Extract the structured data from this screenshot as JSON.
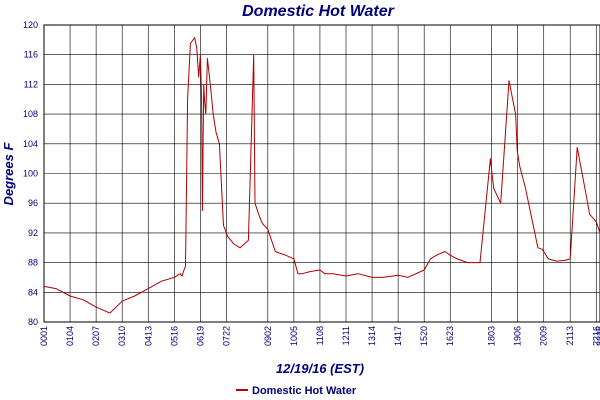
{
  "chart_data": {
    "type": "line",
    "title": "Domestic Hot Water",
    "xlabel": "12/19/16 (EST)",
    "ylabel": "Degrees F",
    "ylim": [
      80,
      120
    ],
    "yticks": [
      80,
      84,
      88,
      92,
      96,
      100,
      104,
      108,
      112,
      116,
      120
    ],
    "xlim": [
      "00:01",
      "22:25"
    ],
    "xticks": [
      "00:01",
      "01:04",
      "02:07",
      "03:10",
      "04:13",
      "05:16",
      "06:19",
      "07:22",
      "09:02",
      "10:05",
      "11:08",
      "12:11",
      "13:14",
      "14:17",
      "15:20",
      "16:23",
      "18:03",
      "19:06",
      "20:09",
      "21:13",
      "22:16",
      "22:25"
    ],
    "grid": true,
    "legend": "bottom-left",
    "colors": {
      "series": "#b00000",
      "axis": "#00007a",
      "grid": "#000000"
    },
    "series": [
      {
        "name": "Domestic Hot Water",
        "x": [
          "00:01",
          "00:30",
          "01:04",
          "01:35",
          "02:07",
          "02:40",
          "03:10",
          "03:40",
          "04:13",
          "04:45",
          "05:16",
          "05:30",
          "05:35",
          "05:38",
          "05:43",
          "05:48",
          "05:55",
          "06:05",
          "06:10",
          "06:15",
          "06:19",
          "06:22",
          "06:24",
          "06:27",
          "06:29",
          "06:32",
          "06:36",
          "06:43",
          "06:50",
          "06:57",
          "07:05",
          "07:15",
          "07:22",
          "07:25",
          "07:40",
          "07:55",
          "08:15",
          "08:28",
          "08:31",
          "08:40",
          "08:47",
          "08:50",
          "09:02",
          "09:20",
          "09:45",
          "10:05",
          "10:15",
          "10:25",
          "10:45",
          "11:08",
          "11:20",
          "11:40",
          "12:11",
          "12:40",
          "13:14",
          "13:40",
          "14:17",
          "14:40",
          "15:20",
          "15:35",
          "15:50",
          "16:10",
          "16:23",
          "16:40",
          "17:05",
          "17:35",
          "18:00",
          "18:03",
          "18:08",
          "18:25",
          "18:45",
          "19:01",
          "19:05",
          "19:11",
          "19:25",
          "19:40",
          "19:55",
          "20:05",
          "20:09",
          "20:20",
          "20:40",
          "21:00",
          "21:13",
          "21:30",
          "21:52",
          "21:55",
          "22:00",
          "22:16",
          "22:25"
        ],
        "values": [
          84.8,
          84.5,
          83.5,
          83.0,
          82.0,
          81.2,
          82.8,
          83.5,
          84.5,
          85.5,
          86.0,
          86.5,
          86.2,
          86.8,
          87.5,
          110.0,
          117.5,
          118.3,
          117.0,
          113.0,
          116.0,
          110.0,
          95.0,
          112.0,
          110.0,
          108.0,
          115.5,
          112.0,
          108.0,
          105.5,
          104.0,
          93.0,
          92.0,
          91.5,
          90.5,
          90.0,
          91.0,
          116.0,
          96.0,
          94.5,
          93.5,
          93.2,
          92.5,
          89.5,
          89.0,
          88.5,
          86.5,
          86.5,
          86.8,
          87.0,
          86.5,
          86.5,
          86.2,
          86.5,
          86.0,
          86.0,
          86.3,
          86.0,
          87.0,
          88.5,
          89.0,
          89.5,
          89.0,
          88.5,
          88.0,
          88.0,
          102.0,
          100.5,
          98.0,
          96.0,
          112.5,
          108.0,
          103.0,
          101.0,
          98.0,
          94.0,
          90.0,
          89.8,
          89.5,
          88.5,
          88.2,
          88.3,
          88.5,
          103.5,
          97.0,
          96.0,
          94.5,
          93.5,
          92.0
        ]
      }
    ]
  }
}
